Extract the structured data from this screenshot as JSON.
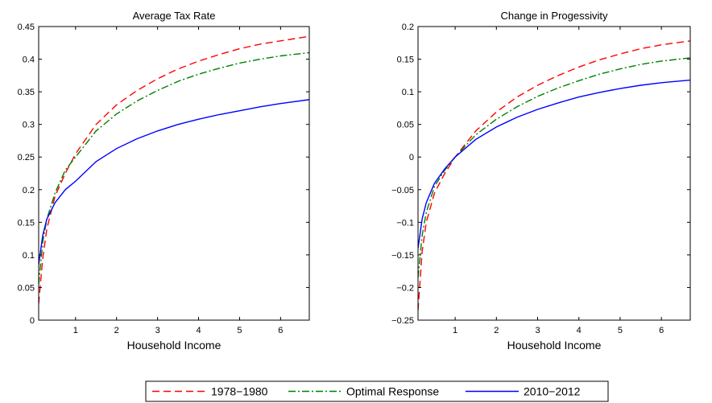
{
  "chart_data": [
    {
      "type": "line",
      "title": "Average Tax Rate",
      "xlabel": "Household Income",
      "ylabel": "",
      "xlim": [
        0.1,
        6.7
      ],
      "ylim": [
        0,
        0.45
      ],
      "xticks": [
        "1",
        "2",
        "3",
        "4",
        "5",
        "6"
      ],
      "yticks": [
        "0",
        "0.05",
        "0.1",
        "0.15",
        "0.2",
        "0.25",
        "0.3",
        "0.35",
        "0.4",
        "0.45"
      ],
      "series": [
        {
          "name": "1978−1980",
          "color": "#ff0000",
          "dash": "dashed",
          "x": [
            0.1,
            0.2,
            0.3,
            0.5,
            0.75,
            1,
            1.5,
            2,
            2.5,
            3,
            3.5,
            4,
            4.5,
            5,
            5.5,
            6,
            6.7
          ],
          "y": [
            0.025,
            0.095,
            0.14,
            0.19,
            0.225,
            0.255,
            0.3,
            0.33,
            0.352,
            0.37,
            0.385,
            0.397,
            0.407,
            0.416,
            0.423,
            0.428,
            0.435
          ]
        },
        {
          "name": "Optimal Response",
          "color": "#008000",
          "dash": "dashdot",
          "x": [
            0.1,
            0.2,
            0.3,
            0.5,
            0.75,
            1,
            1.5,
            2,
            2.5,
            3,
            3.5,
            4,
            4.5,
            5,
            5.5,
            6,
            6.7
          ],
          "y": [
            0.055,
            0.12,
            0.155,
            0.195,
            0.23,
            0.25,
            0.29,
            0.316,
            0.336,
            0.352,
            0.366,
            0.377,
            0.386,
            0.394,
            0.4,
            0.405,
            0.41
          ]
        },
        {
          "name": "2010−2012",
          "color": "#0000ff",
          "dash": "solid",
          "x": [
            0.1,
            0.2,
            0.3,
            0.5,
            0.75,
            1,
            1.5,
            2,
            2.5,
            3,
            3.5,
            4,
            4.5,
            5,
            5.5,
            6,
            6.7
          ],
          "y": [
            0.085,
            0.13,
            0.155,
            0.18,
            0.2,
            0.213,
            0.243,
            0.263,
            0.278,
            0.29,
            0.3,
            0.308,
            0.315,
            0.321,
            0.327,
            0.332,
            0.338
          ]
        }
      ]
    },
    {
      "type": "line",
      "title": "Change in Progessivity",
      "xlabel": "Household Income",
      "ylabel": "",
      "xlim": [
        0.1,
        6.7
      ],
      "ylim": [
        -0.25,
        0.2
      ],
      "xticks": [
        "1",
        "2",
        "3",
        "4",
        "5",
        "6"
      ],
      "yticks": [
        "−0.25",
        "−0.2",
        "−0.15",
        "−0.1",
        "−0.05",
        "0",
        "0.05",
        "0.1",
        "0.15",
        "0.2"
      ],
      "series": [
        {
          "name": "1978−1980",
          "color": "#ff0000",
          "dash": "dashed",
          "x": [
            0.1,
            0.2,
            0.3,
            0.5,
            0.75,
            1,
            1.5,
            2,
            2.5,
            3,
            3.5,
            4,
            4.5,
            5,
            5.5,
            6,
            6.7
          ],
          "y": [
            -0.235,
            -0.145,
            -0.1,
            -0.055,
            -0.025,
            0.0,
            0.04,
            0.069,
            0.092,
            0.11,
            0.125,
            0.138,
            0.149,
            0.158,
            0.166,
            0.172,
            0.178
          ]
        },
        {
          "name": "Optimal Response",
          "color": "#008000",
          "dash": "dashdot",
          "x": [
            0.1,
            0.2,
            0.3,
            0.5,
            0.75,
            1,
            1.5,
            2,
            2.5,
            3,
            3.5,
            4,
            4.5,
            5,
            5.5,
            6,
            6.7
          ],
          "y": [
            -0.185,
            -0.12,
            -0.085,
            -0.045,
            -0.02,
            0.0,
            0.034,
            0.058,
            0.077,
            0.093,
            0.106,
            0.117,
            0.127,
            0.135,
            0.142,
            0.147,
            0.152
          ]
        },
        {
          "name": "2010−2012",
          "color": "#0000ff",
          "dash": "solid",
          "x": [
            0.1,
            0.2,
            0.3,
            0.5,
            0.75,
            1,
            1.5,
            2,
            2.5,
            3,
            3.5,
            4,
            4.5,
            5,
            5.5,
            6,
            6.7
          ],
          "y": [
            -0.14,
            -0.095,
            -0.07,
            -0.04,
            -0.018,
            0.0,
            0.027,
            0.046,
            0.061,
            0.073,
            0.083,
            0.092,
            0.099,
            0.105,
            0.11,
            0.114,
            0.118
          ]
        }
      ]
    }
  ],
  "legend": {
    "placement": "bottom-center",
    "items": [
      {
        "label": "1978−1980",
        "color": "#ff0000",
        "dash": "dashed"
      },
      {
        "label": "Optimal Response",
        "color": "#008000",
        "dash": "dashdot"
      },
      {
        "label": "2010−2012",
        "color": "#0000ff",
        "dash": "solid"
      }
    ]
  }
}
